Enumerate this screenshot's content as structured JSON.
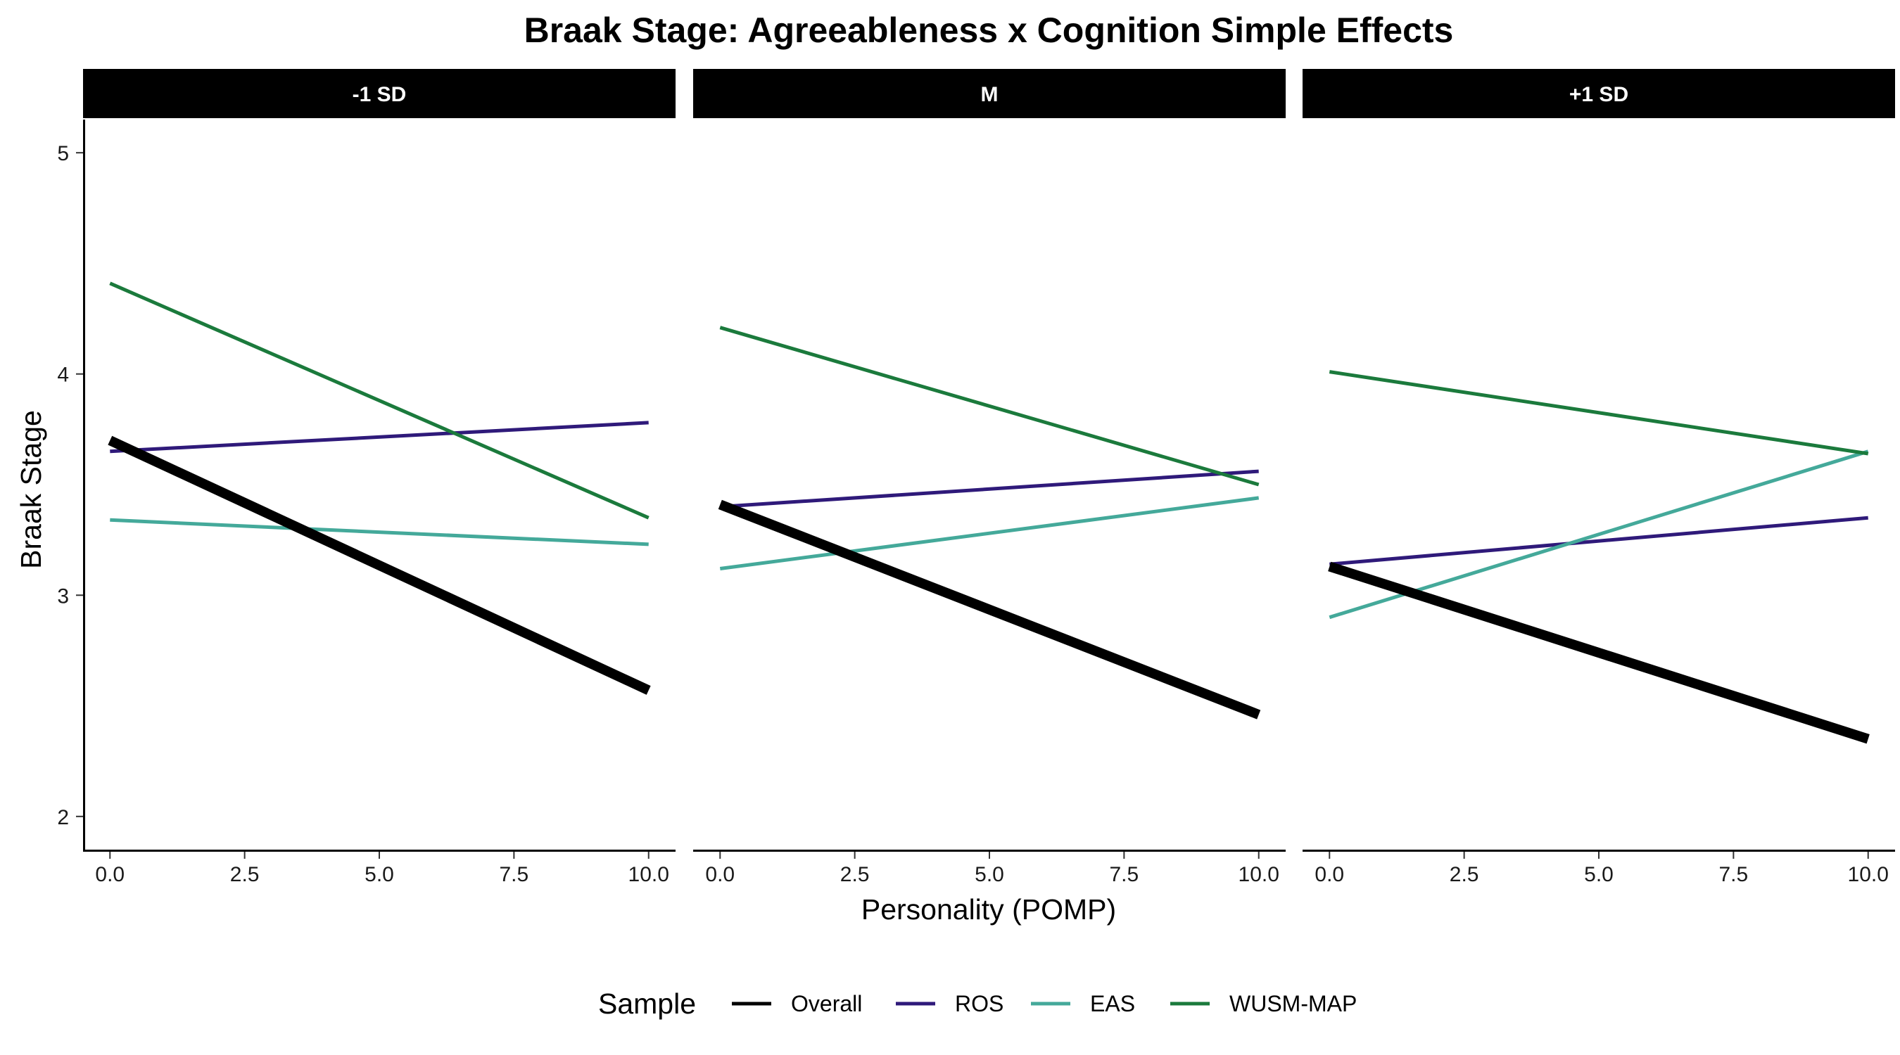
{
  "chart_data": {
    "type": "line",
    "title": "Braak Stage: Agreeableness x Cognition Simple Effects",
    "xlabel": "Personality (POMP)",
    "ylabel": "Braak Stage",
    "xlim": [
      -0.5,
      10.5
    ],
    "ylim": [
      1.85,
      5.15
    ],
    "x_ticks": [
      0,
      2.5,
      5,
      7.5,
      10
    ],
    "x_tick_labels": [
      "0.0",
      "2.5",
      "5.0",
      "7.5",
      "10.0"
    ],
    "y_ticks": [
      2,
      3,
      4,
      5
    ],
    "y_tick_labels": [
      "2",
      "3",
      "4",
      "5"
    ],
    "grid": false,
    "legend": {
      "title": "Sample",
      "position": "bottom",
      "entries": [
        "Overall",
        "ROS",
        "EAS",
        "WUSM-MAP"
      ]
    },
    "series_colors": {
      "Overall": "#000000",
      "ROS": "#2f1a7a",
      "EAS": "#44a99a",
      "WUSM-MAP": "#1b7a3c"
    },
    "panels": [
      {
        "label": "-1 SD",
        "series": [
          {
            "name": "Overall",
            "x": [
              0,
              10
            ],
            "y": [
              3.7,
              2.57
            ]
          },
          {
            "name": "ROS",
            "x": [
              0,
              10
            ],
            "y": [
              3.65,
              3.78
            ]
          },
          {
            "name": "EAS",
            "x": [
              0,
              10
            ],
            "y": [
              3.34,
              3.23
            ]
          },
          {
            "name": "WUSM-MAP",
            "x": [
              0,
              10
            ],
            "y": [
              4.41,
              3.35
            ]
          }
        ]
      },
      {
        "label": "M",
        "series": [
          {
            "name": "Overall",
            "x": [
              0,
              10
            ],
            "y": [
              3.41,
              2.46
            ]
          },
          {
            "name": "ROS",
            "x": [
              0,
              10
            ],
            "y": [
              3.4,
              3.56
            ]
          },
          {
            "name": "EAS",
            "x": [
              0,
              10
            ],
            "y": [
              3.12,
              3.44
            ]
          },
          {
            "name": "WUSM-MAP",
            "x": [
              0,
              10
            ],
            "y": [
              4.21,
              3.5
            ]
          }
        ]
      },
      {
        "label": "+1 SD",
        "series": [
          {
            "name": "Overall",
            "x": [
              0,
              10
            ],
            "y": [
              3.13,
              2.35
            ]
          },
          {
            "name": "ROS",
            "x": [
              0,
              10
            ],
            "y": [
              3.14,
              3.35
            ]
          },
          {
            "name": "EAS",
            "x": [
              0,
              10
            ],
            "y": [
              2.9,
              3.65
            ]
          },
          {
            "name": "WUSM-MAP",
            "x": [
              0,
              10
            ],
            "y": [
              4.01,
              3.64
            ]
          }
        ]
      }
    ]
  }
}
